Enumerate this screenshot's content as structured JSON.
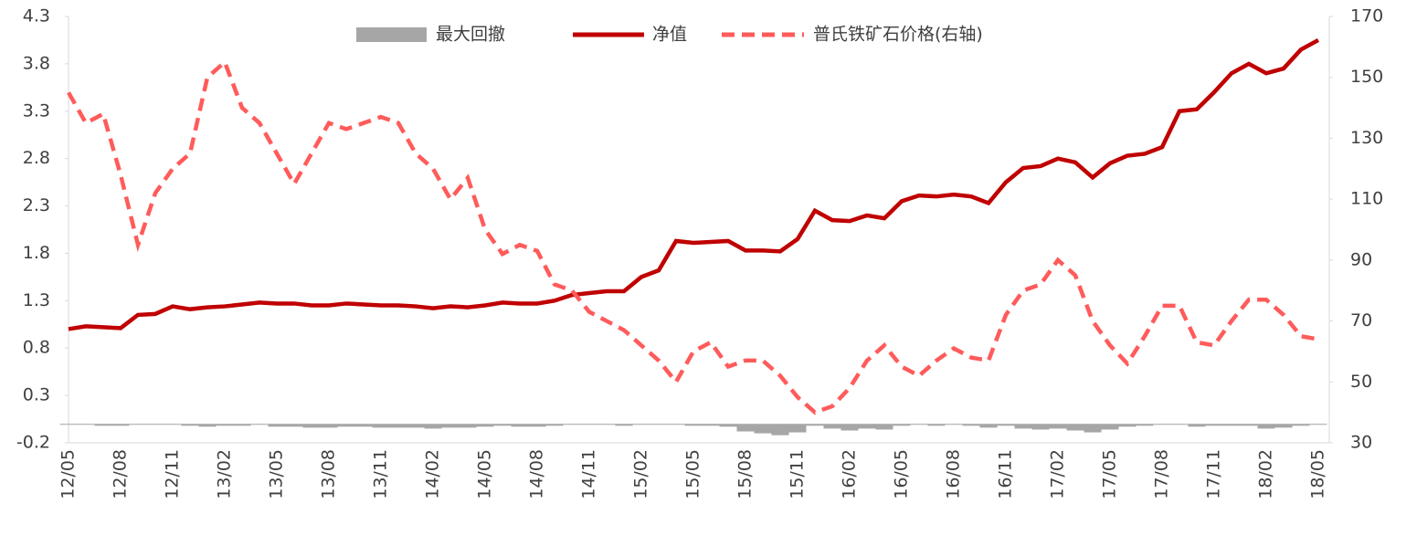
{
  "chart_data": {
    "type": "line",
    "categories": [
      "12/05",
      null,
      null,
      "12/08",
      null,
      null,
      "12/11",
      null,
      null,
      "13/02",
      null,
      null,
      "13/05",
      null,
      null,
      "13/08",
      null,
      null,
      "13/11",
      null,
      null,
      "14/02",
      null,
      null,
      "14/05",
      null,
      null,
      "14/08",
      null,
      null,
      "14/11",
      null,
      null,
      "15/02",
      null,
      null,
      "15/05",
      null,
      null,
      "15/08",
      null,
      null,
      "15/11",
      null,
      null,
      "16/02",
      null,
      null,
      "16/05",
      null,
      null,
      "16/08",
      null,
      null,
      "16/11",
      null,
      null,
      "17/02",
      null,
      null,
      "17/05",
      null,
      null,
      "17/08",
      null,
      null,
      "17/11",
      null,
      null,
      "18/02",
      null,
      null,
      "18/05"
    ],
    "series": [
      {
        "name": "最大回撤",
        "type": "bar",
        "color": "#a6a6a6",
        "values": [
          -0.01,
          -0.01,
          -0.02,
          -0.02,
          -0.01,
          -0.01,
          -0.01,
          -0.02,
          -0.03,
          -0.02,
          -0.02,
          -0.01,
          -0.03,
          -0.03,
          -0.04,
          -0.04,
          -0.03,
          -0.03,
          -0.04,
          -0.04,
          -0.04,
          -0.05,
          -0.04,
          -0.04,
          -0.03,
          -0.02,
          -0.03,
          -0.03,
          -0.02,
          -0.01,
          -0.01,
          -0.01,
          -0.02,
          -0.01,
          -0.01,
          -0.01,
          -0.02,
          -0.02,
          -0.03,
          -0.08,
          -0.1,
          -0.12,
          -0.09,
          -0.02,
          -0.05,
          -0.07,
          -0.05,
          -0.06,
          -0.02,
          -0.01,
          -0.02,
          -0.01,
          -0.02,
          -0.04,
          -0.02,
          -0.05,
          -0.06,
          -0.05,
          -0.07,
          -0.09,
          -0.06,
          -0.03,
          -0.02,
          -0.01,
          -0.01,
          -0.03,
          -0.02,
          -0.02,
          -0.02,
          -0.05,
          -0.04,
          -0.02,
          -0.01
        ]
      },
      {
        "name": "净值",
        "type": "line",
        "color": "#c00000",
        "values": [
          1.0,
          1.03,
          1.02,
          1.01,
          1.15,
          1.16,
          1.24,
          1.21,
          1.23,
          1.24,
          1.26,
          1.28,
          1.27,
          1.27,
          1.25,
          1.25,
          1.27,
          1.26,
          1.25,
          1.25,
          1.24,
          1.22,
          1.24,
          1.23,
          1.25,
          1.28,
          1.27,
          1.27,
          1.3,
          1.36,
          1.38,
          1.4,
          1.4,
          1.55,
          1.62,
          1.93,
          1.91,
          1.92,
          1.93,
          1.83,
          1.83,
          1.82,
          1.95,
          2.25,
          2.15,
          2.14,
          2.2,
          2.17,
          2.35,
          2.41,
          2.4,
          2.42,
          2.4,
          2.33,
          2.55,
          2.7,
          2.72,
          2.8,
          2.76,
          2.6,
          2.75,
          2.83,
          2.85,
          2.92,
          3.3,
          3.32,
          3.5,
          3.7,
          3.8,
          3.7,
          3.75,
          3.95,
          4.05
        ]
      },
      {
        "name": "普氏铁矿石价格(右轴)",
        "type": "line",
        "dashed": true,
        "axis": "y2",
        "color": "#ff5b5b",
        "values": [
          145,
          135,
          138,
          118,
          95,
          112,
          120,
          125,
          150,
          155,
          140,
          135,
          125,
          115,
          125,
          135,
          133,
          135,
          137,
          135,
          125,
          120,
          110,
          117,
          100,
          92,
          95,
          93,
          82,
          80,
          73,
          70,
          67,
          62,
          57,
          50,
          60,
          63,
          55,
          57,
          57,
          52,
          45,
          40,
          42,
          48,
          57,
          62,
          55,
          52,
          57,
          61,
          58,
          57,
          72,
          80,
          82,
          90,
          85,
          70,
          62,
          56,
          65,
          75,
          75,
          63,
          62,
          70,
          77,
          77,
          72,
          65,
          64
        ]
      }
    ],
    "ylim": [
      -0.2,
      4.3
    ],
    "yticks": [
      -0.2,
      0.3,
      0.8,
      1.3,
      1.8,
      2.3,
      2.8,
      3.3,
      3.8,
      4.3
    ],
    "y2lim": [
      30,
      170
    ],
    "y2ticks": [
      30,
      50,
      70,
      90,
      110,
      130,
      150,
      170
    ],
    "legend": "top"
  }
}
